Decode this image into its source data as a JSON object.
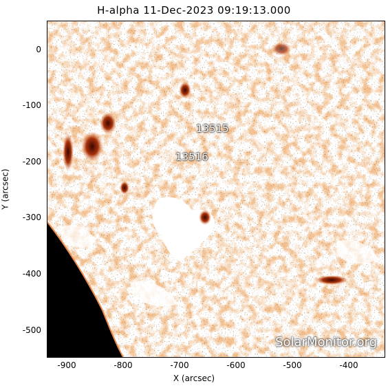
{
  "title": "H-alpha 11-Dec-2023 09:19:13.000",
  "xlabel": "X (arcsec)",
  "ylabel": "Y (arcsec)",
  "xticks": [
    "-900",
    "-800",
    "-700",
    "-600",
    "-500",
    "-400"
  ],
  "yticks": [
    "0",
    "-100",
    "-200",
    "-300",
    "-400",
    "-500"
  ],
  "regions": {
    "r1": "13515",
    "r2": "13516"
  },
  "watermark": "SolarMonitor.org",
  "colors": {
    "chromosphere": "#e8894a",
    "bright_plage": "#b23a10",
    "limb_space": "#000000",
    "background": "#ffffff"
  }
}
